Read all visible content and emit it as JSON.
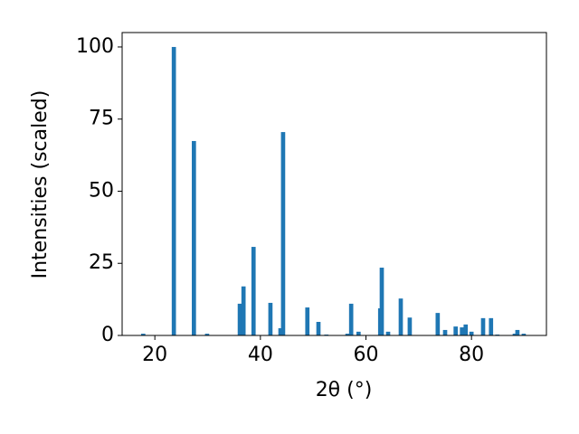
{
  "chart_data": {
    "type": "bar",
    "color": "#1f77b4",
    "xlabel": "2θ (°)",
    "ylabel": "Intensities (scaled)",
    "x": [
      17.8,
      23.6,
      27.4,
      29.9,
      36.1,
      36.8,
      38.7,
      41.9,
      43.8,
      44.3,
      48.9,
      51.0,
      52.5,
      56.5,
      57.2,
      58.6,
      62.7,
      63.0,
      64.2,
      66.6,
      68.3,
      73.6,
      75.0,
      77.0,
      78.2,
      78.9,
      80.0,
      82.2,
      83.7,
      84.9,
      88.2,
      88.7,
      89.9
    ],
    "values": [
      0.6,
      100,
      67.4,
      0.6,
      11,
      17,
      30.7,
      11.3,
      2.5,
      70.5,
      9.7,
      4.7,
      0.3,
      0.6,
      11,
      1.3,
      9.4,
      23.5,
      1.3,
      12.8,
      6.2,
      7.8,
      1.9,
      3.1,
      2.8,
      3.8,
      1.3,
      6,
      6,
      0.3,
      0.6,
      1.9,
      0.6
    ],
    "xlim": [
      13.8,
      94.2
    ],
    "ylim": [
      0,
      105
    ],
    "xticks": [
      20,
      40,
      60,
      80
    ],
    "yticks": [
      0,
      25,
      50,
      75,
      100
    ]
  }
}
